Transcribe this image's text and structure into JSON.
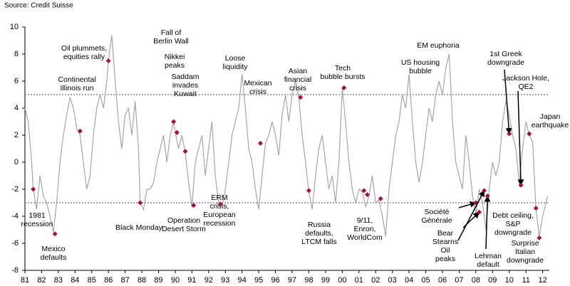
{
  "chart_data": {
    "type": "line",
    "source": "Source: Credit Suisse",
    "color": "#a9a4a4",
    "marker_color": "#a0123c",
    "xlim": [
      1981,
      2012.4
    ],
    "ylim": [
      -8,
      10
    ],
    "yticks": [
      -8,
      -6,
      -4,
      -2,
      0,
      2,
      4,
      6,
      8,
      10
    ],
    "xticks": [
      {
        "value": 1981,
        "label": "81"
      },
      {
        "value": 1982,
        "label": "82"
      },
      {
        "value": 1983,
        "label": "83"
      },
      {
        "value": 1984,
        "label": "84"
      },
      {
        "value": 1985,
        "label": "85"
      },
      {
        "value": 1986,
        "label": "86"
      },
      {
        "value": 1987,
        "label": "87"
      },
      {
        "value": 1988,
        "label": "88"
      },
      {
        "value": 1989,
        "label": "89"
      },
      {
        "value": 1990,
        "label": "90"
      },
      {
        "value": 1991,
        "label": "91"
      },
      {
        "value": 1992,
        "label": "92"
      },
      {
        "value": 1993,
        "label": "93"
      },
      {
        "value": 1994,
        "label": "94"
      },
      {
        "value": 1995,
        "label": "95"
      },
      {
        "value": 1996,
        "label": "96"
      },
      {
        "value": 1997,
        "label": "97"
      },
      {
        "value": 1998,
        "label": "98"
      },
      {
        "value": 1999,
        "label": "99"
      },
      {
        "value": 2000,
        "label": "00"
      },
      {
        "value": 2001,
        "label": "01"
      },
      {
        "value": 2002,
        "label": "02"
      },
      {
        "value": 2003,
        "label": "03"
      },
      {
        "value": 2004,
        "label": "04"
      },
      {
        "value": 2005,
        "label": "05"
      },
      {
        "value": 2006,
        "label": "06"
      },
      {
        "value": 2007,
        "label": "07"
      },
      {
        "value": 2008,
        "label": "08"
      },
      {
        "value": 2009,
        "label": "09"
      },
      {
        "value": 2010,
        "label": "10"
      },
      {
        "value": 2011,
        "label": "11"
      },
      {
        "value": 2012,
        "label": "12"
      }
    ],
    "reference_lines": [
      5,
      -3
    ],
    "x": [
      1981.0,
      1981.2,
      1981.4,
      1981.5,
      1981.7,
      1981.9,
      1982.1,
      1982.3,
      1982.5,
      1982.7,
      1982.9,
      1983.1,
      1983.3,
      1983.5,
      1983.7,
      1983.9,
      1984.1,
      1984.3,
      1984.5,
      1984.7,
      1984.9,
      1985.1,
      1985.3,
      1985.5,
      1985.7,
      1985.9,
      1986.0,
      1986.2,
      1986.4,
      1986.6,
      1986.8,
      1987.0,
      1987.2,
      1987.4,
      1987.6,
      1987.8,
      1987.9,
      1988.1,
      1988.3,
      1988.5,
      1988.7,
      1988.9,
      1989.1,
      1989.3,
      1989.5,
      1989.7,
      1989.9,
      1990.0,
      1990.2,
      1990.4,
      1990.6,
      1990.8,
      1991.0,
      1991.2,
      1991.4,
      1991.6,
      1991.8,
      1992.0,
      1992.2,
      1992.4,
      1992.6,
      1992.8,
      1993.0,
      1993.2,
      1993.4,
      1993.6,
      1993.8,
      1994.0,
      1994.2,
      1994.4,
      1994.6,
      1994.8,
      1995.0,
      1995.2,
      1995.4,
      1995.6,
      1995.8,
      1996.0,
      1996.2,
      1996.4,
      1996.6,
      1996.8,
      1997.0,
      1997.2,
      1997.4,
      1997.6,
      1997.8,
      1998.0,
      1998.2,
      1998.4,
      1998.6,
      1998.8,
      1999.0,
      1999.2,
      1999.4,
      1999.6,
      1999.8,
      2000.0,
      2000.2,
      2000.4,
      2000.6,
      2000.8,
      2001.0,
      2001.2,
      2001.4,
      2001.6,
      2001.8,
      2002.0,
      2002.2,
      2002.4,
      2002.6,
      2002.8,
      2003.0,
      2003.2,
      2003.4,
      2003.6,
      2003.8,
      2004.0,
      2004.2,
      2004.4,
      2004.6,
      2004.8,
      2005.0,
      2005.2,
      2005.4,
      2005.6,
      2005.8,
      2006.0,
      2006.2,
      2006.4,
      2006.6,
      2006.8,
      2007.0,
      2007.2,
      2007.4,
      2007.6,
      2007.8,
      2008.0,
      2008.2,
      2008.4,
      2008.6,
      2008.8,
      2009.0,
      2009.2,
      2009.4,
      2009.6,
      2009.8,
      2010.0,
      2010.2,
      2010.4,
      2010.6,
      2010.8,
      2011.0,
      2011.2,
      2011.4,
      2011.6,
      2011.8,
      2012.0,
      2012.3
    ],
    "values": [
      4,
      3,
      0,
      -2,
      -3.5,
      -1,
      -2.5,
      -3,
      -4,
      -5.2,
      -3,
      0,
      2,
      3.5,
      4.8,
      4,
      2.5,
      2,
      0,
      -2,
      -1,
      2,
      4,
      5,
      4,
      6,
      7.5,
      9.4,
      6,
      3,
      1,
      3.5,
      4,
      2,
      4.5,
      1,
      -3,
      -3.5,
      -2,
      -2,
      -1.5,
      0,
      1,
      2,
      0,
      2,
      3,
      2.2,
      1,
      2,
      0.7,
      -1.5,
      -3.3,
      0,
      1,
      2,
      -1,
      1,
      3,
      -1,
      -3,
      -3.2,
      -2,
      0,
      2,
      3,
      4,
      6.5,
      4,
      1,
      0,
      -2,
      -3.5,
      -1,
      1.4,
      2,
      3,
      2,
      0.5,
      3.5,
      5,
      3,
      5,
      6,
      4.8,
      2,
      0,
      -2.2,
      -3.5,
      -1,
      1,
      2,
      0,
      -2,
      -1,
      -3,
      0,
      5.5,
      3,
      0,
      -2,
      -3,
      -2,
      -2.2,
      -3.3,
      -2.5,
      -1,
      -3,
      -2.8,
      -4,
      -5.5,
      -2,
      0,
      2,
      3,
      5,
      4,
      6.5,
      3,
      0,
      -1.5,
      0,
      2,
      4,
      3,
      5,
      6,
      5,
      7,
      8,
      3,
      0,
      -1,
      -2,
      2,
      0,
      -2.5,
      -3.8,
      -2,
      -3,
      -5,
      -2,
      0,
      -1,
      0,
      3,
      4.5,
      3.5,
      2,
      1,
      -1.6,
      1,
      3,
      2,
      1.5,
      -3.5,
      -5.5,
      -4,
      -2.5
    ],
    "events": [
      {
        "label": [
          "1981",
          "recession"
        ],
        "points": [
          [
            1981.5,
            -2
          ]
        ]
      },
      {
        "label": [
          "Mexico",
          "defaults"
        ],
        "points": [
          [
            1982.8,
            -5.3
          ]
        ]
      },
      {
        "label": [
          "Continental",
          "Illinois run"
        ],
        "points": [
          [
            1984.3,
            2.3
          ]
        ]
      },
      {
        "label": [
          "Oil plummets,",
          "equities rally"
        ],
        "points": [
          [
            1986.0,
            7.5
          ]
        ]
      },
      {
        "label": [
          "Black Monday"
        ],
        "points": [
          [
            1987.9,
            -3
          ]
        ]
      },
      {
        "label": [
          "Fall of",
          "Berlin Wall"
        ],
        "points": [
          [
            1989.9,
            3.0
          ]
        ]
      },
      {
        "label": [
          "Nikkei",
          "peaks"
        ],
        "points": [
          [
            1990.1,
            2.2
          ]
        ]
      },
      {
        "label": [
          "Saddam",
          "invades",
          "Kuwait"
        ],
        "points": [
          [
            1990.6,
            0.8
          ]
        ]
      },
      {
        "label": [
          "Operation",
          "Desert Storm"
        ],
        "points": [
          [
            1991.1,
            -3.2
          ]
        ]
      },
      {
        "label": [
          "ERM",
          "crisis,",
          "European",
          "recession"
        ],
        "points": [
          [
            1992.7,
            -3.1
          ]
        ]
      },
      {
        "label": [
          "Loose",
          "liquidity"
        ],
        "points": []
      },
      {
        "label": [
          "Mexican",
          "crisis"
        ],
        "points": [
          [
            1995.1,
            1.4
          ]
        ]
      },
      {
        "label": [
          "Asian",
          "financial",
          "crisis"
        ],
        "points": [
          [
            1997.5,
            4.8
          ]
        ]
      },
      {
        "label": [
          "Russia",
          "defaults,",
          "LTCM falls"
        ],
        "points": [
          [
            1998.0,
            -2.1
          ]
        ]
      },
      {
        "label": [
          "Tech",
          "bubble bursts"
        ],
        "points": [
          [
            2000.1,
            5.5
          ]
        ]
      },
      {
        "label": [
          "9/11,",
          "Enron,",
          "WorldCom"
        ],
        "points": [
          [
            2001.3,
            -2.1
          ],
          [
            2001.5,
            -2.4
          ],
          [
            2002.3,
            -2.7
          ]
        ]
      },
      {
        "label": [
          "EM euphoria"
        ],
        "points": []
      },
      {
        "label": [
          "US housing",
          "bubble"
        ],
        "points": []
      },
      {
        "label": [
          "Société",
          "Générale"
        ],
        "points": [
          [
            2008.0,
            -3.0
          ]
        ]
      },
      {
        "label": [
          "Bear",
          "Stearns"
        ],
        "points": [
          [
            2008.2,
            -3.7
          ]
        ]
      },
      {
        "label": [
          "Oil",
          "peaks"
        ],
        "points": [
          [
            2008.5,
            -2.1
          ]
        ]
      },
      {
        "label": [
          "Lehman",
          "default"
        ],
        "points": [
          [
            2008.7,
            -2.5
          ]
        ]
      },
      {
        "label": [
          "1st Greek",
          "downgrade"
        ],
        "points": [
          [
            2010.0,
            2.1
          ]
        ]
      },
      {
        "label": [
          "Jackson Hole,",
          "QE2"
        ],
        "points": [
          [
            2010.7,
            -1.7
          ]
        ]
      },
      {
        "label": [
          "Japan",
          "earthquake"
        ],
        "points": [
          [
            2011.2,
            2.1
          ]
        ]
      },
      {
        "label": [
          "Debt ceiling,",
          "S&P",
          "downgrade"
        ],
        "points": [
          [
            2011.6,
            -3.4
          ]
        ]
      },
      {
        "label": [
          "Surprise",
          "Italian",
          "downgrade"
        ],
        "points": [
          [
            2011.8,
            -5.6
          ]
        ]
      }
    ]
  }
}
